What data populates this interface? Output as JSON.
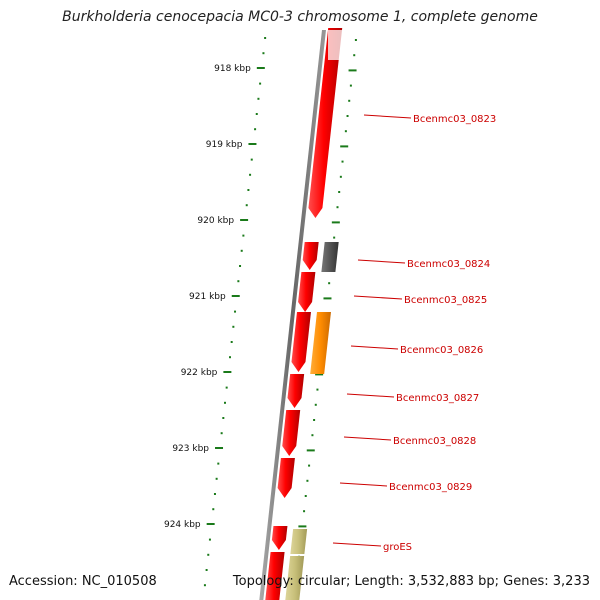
{
  "title": "Burkholderia cenocepacia MC0-3 chromosome 1, complete genome",
  "footer": {
    "accession": "Accession: NC_010508",
    "topology": "Topology: circular; Length: 3,532,883 bp; Genes: 3,233"
  },
  "scale": {
    "unit": "kbp",
    "ticks": [
      "918 kbp",
      "919 kbp",
      "920 kbp",
      "921 kbp",
      "922 kbp",
      "923 kbp",
      "924 kbp"
    ]
  },
  "genes": [
    {
      "name": "",
      "color": "#ff0000",
      "strand": "forward",
      "type": "CDS"
    },
    {
      "name": "Bcenmc03_0823",
      "color": "#ff0000",
      "strand": "forward",
      "type": "CDS"
    },
    {
      "name": "Bcenmc03_0824",
      "color": "#ff0000",
      "strand": "forward",
      "type": "CDS"
    },
    {
      "name": "",
      "color": "#555555",
      "strand": "reverse",
      "type": "feature"
    },
    {
      "name": "Bcenmc03_0825",
      "color": "#ff0000",
      "strand": "forward",
      "type": "CDS"
    },
    {
      "name": "Bcenmc03_0826",
      "color": "#ff0000",
      "strand": "forward",
      "type": "CDS"
    },
    {
      "name": "",
      "color": "#ff8c00",
      "strand": "reverse",
      "type": "feature"
    },
    {
      "name": "Bcenmc03_0827",
      "color": "#ff0000",
      "strand": "forward",
      "type": "CDS"
    },
    {
      "name": "Bcenmc03_0828",
      "color": "#ff0000",
      "strand": "forward",
      "type": "CDS"
    },
    {
      "name": "Bcenmc03_0829",
      "color": "#ff0000",
      "strand": "forward",
      "type": "CDS"
    },
    {
      "name": "",
      "color": "#ff0000",
      "strand": "forward",
      "type": "CDS"
    },
    {
      "name": "groES",
      "color": "#c8c07a",
      "strand": "reverse",
      "type": "feature"
    },
    {
      "name": "",
      "color": "#ff0000",
      "strand": "forward",
      "type": "CDS"
    },
    {
      "name": "",
      "color": "#c8c07a",
      "strand": "reverse",
      "type": "feature"
    }
  ],
  "colors": {
    "backbone": "#888888",
    "tick": "#1a7a1a",
    "label_line": "#cc0000",
    "label_text": "#cc0000"
  }
}
